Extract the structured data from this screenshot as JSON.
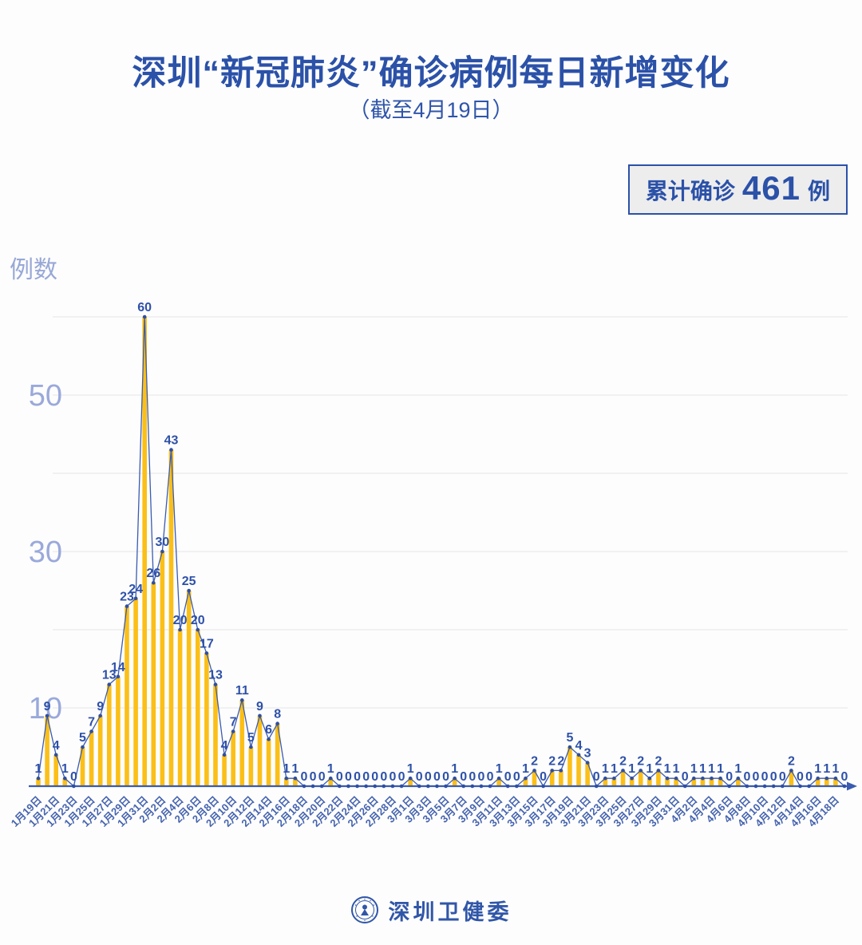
{
  "header": {
    "title": "深圳“新冠肺炎”确诊病例每日新增变化",
    "subtitle": "（截至4月19日）",
    "badge": {
      "prefix": "累计确诊",
      "value": "461",
      "suffix": "例"
    }
  },
  "chart_data": {
    "type": "bar",
    "overlay": "line",
    "title": "深圳“新冠肺炎”确诊病例每日新增变化",
    "subtitle": "截至4月19日",
    "ylabel": "例数",
    "xlabel": "",
    "ylim": [
      0,
      62
    ],
    "grid_step": 10,
    "yticks_labeled": [
      10,
      30,
      50
    ],
    "x_tick_every": 2,
    "legend": "none",
    "cumulative_total": 461,
    "x": [
      "1月19日",
      "1月20日",
      "1月21日",
      "1月22日",
      "1月23日",
      "1月24日",
      "1月25日",
      "1月26日",
      "1月27日",
      "1月28日",
      "1月29日",
      "1月30日",
      "1月31日",
      "2月1日",
      "2月2日",
      "2月3日",
      "2月4日",
      "2月5日",
      "2月6日",
      "2月7日",
      "2月8日",
      "2月9日",
      "2月10日",
      "2月11日",
      "2月12日",
      "2月13日",
      "2月14日",
      "2月15日",
      "2月16日",
      "2月17日",
      "2月18日",
      "2月19日",
      "2月20日",
      "2月21日",
      "2月22日",
      "2月23日",
      "2月24日",
      "2月25日",
      "2月26日",
      "2月27日",
      "2月28日",
      "2月29日",
      "3月1日",
      "3月2日",
      "3月3日",
      "3月4日",
      "3月5日",
      "3月6日",
      "3月7日",
      "3月8日",
      "3月9日",
      "3月10日",
      "3月11日",
      "3月12日",
      "3月13日",
      "3月14日",
      "3月15日",
      "3月16日",
      "3月17日",
      "3月18日",
      "3月19日",
      "3月20日",
      "3月21日",
      "3月22日",
      "3月23日",
      "3月24日",
      "3月25日",
      "3月26日",
      "3月27日",
      "3月28日",
      "3月29日",
      "3月30日",
      "3月31日",
      "4月1日",
      "4月2日",
      "4月3日",
      "4月4日",
      "4月5日",
      "4月6日",
      "4月7日",
      "4月8日",
      "4月9日",
      "4月10日",
      "4月11日",
      "4月12日",
      "4月13日",
      "4月14日",
      "4月15日",
      "4月16日",
      "4月17日",
      "4月18日",
      "4月19日"
    ],
    "values": [
      1,
      9,
      4,
      1,
      0,
      5,
      7,
      9,
      13,
      14,
      23,
      24,
      60,
      26,
      30,
      43,
      20,
      25,
      20,
      17,
      13,
      4,
      7,
      11,
      5,
      9,
      6,
      8,
      1,
      1,
      0,
      0,
      0,
      1,
      0,
      0,
      0,
      0,
      0,
      0,
      0,
      0,
      1,
      0,
      0,
      0,
      0,
      1,
      0,
      0,
      0,
      0,
      1,
      0,
      0,
      1,
      2,
      0,
      2,
      2,
      5,
      4,
      3,
      0,
      1,
      1,
      2,
      1,
      2,
      1,
      2,
      1,
      1,
      0,
      1,
      1,
      1,
      1,
      0,
      1,
      0,
      0,
      0,
      0,
      0,
      2,
      0,
      0,
      1,
      1,
      1,
      0
    ]
  },
  "footer": {
    "org": "深圳卫健委"
  },
  "colors": {
    "title": "#2b51a8",
    "bar": "#fbbf17",
    "line": "#3a5bb0",
    "marker": "#2e4fa3",
    "data_label": "#2e51a8",
    "ytick_text": "#9aa9db",
    "xtick_text": "#4563ae",
    "grid": "#eaeaea",
    "axis": "#3a5bb0",
    "badge_bg": "#ededed"
  }
}
